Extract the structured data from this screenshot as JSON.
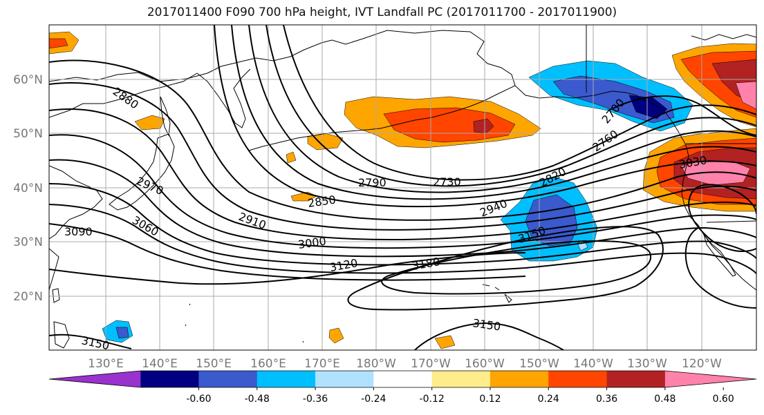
{
  "title": "2017011400 F090 700 hPa height, IVT Landfall PC (2017011700 - 2017011900)",
  "lon_labels": [
    "130°E",
    "140°E",
    "150°E",
    "160°E",
    "170°E",
    "180°W",
    "170°W",
    "160°W",
    "150°W",
    "140°W",
    "130°W",
    "120°W"
  ],
  "lat_labels": [
    "60°N",
    "50°N",
    "40°N",
    "30°N",
    "20°N"
  ],
  "contour_labels": [
    {
      "text": "2880"
    },
    {
      "text": "2970"
    },
    {
      "text": "3090"
    },
    {
      "text": "3060"
    },
    {
      "text": "2850"
    },
    {
      "text": "2910"
    },
    {
      "text": "2790"
    },
    {
      "text": "2730"
    },
    {
      "text": "3000"
    },
    {
      "text": "3120"
    },
    {
      "text": "3180"
    },
    {
      "text": "2940"
    },
    {
      "text": "2820"
    },
    {
      "text": "2760"
    },
    {
      "text": "3150"
    },
    {
      "text": "3150"
    },
    {
      "text": "3150"
    },
    {
      "text": "3030"
    },
    {
      "text": "2700"
    }
  ],
  "colorbar": {
    "colors": [
      "#9a32cd",
      "#000080",
      "#3a5acd",
      "#00bfff",
      "#b0e2ff",
      "#ffffff",
      "#ffec8b",
      "#ffa500",
      "#ff4500",
      "#b22222",
      "#ff82ab"
    ],
    "tick_labels": [
      "-0.60",
      "-0.48",
      "-0.36",
      "-0.24",
      "-0.12",
      "0.12",
      "0.24",
      "0.36",
      "0.48",
      "0.60"
    ]
  }
}
